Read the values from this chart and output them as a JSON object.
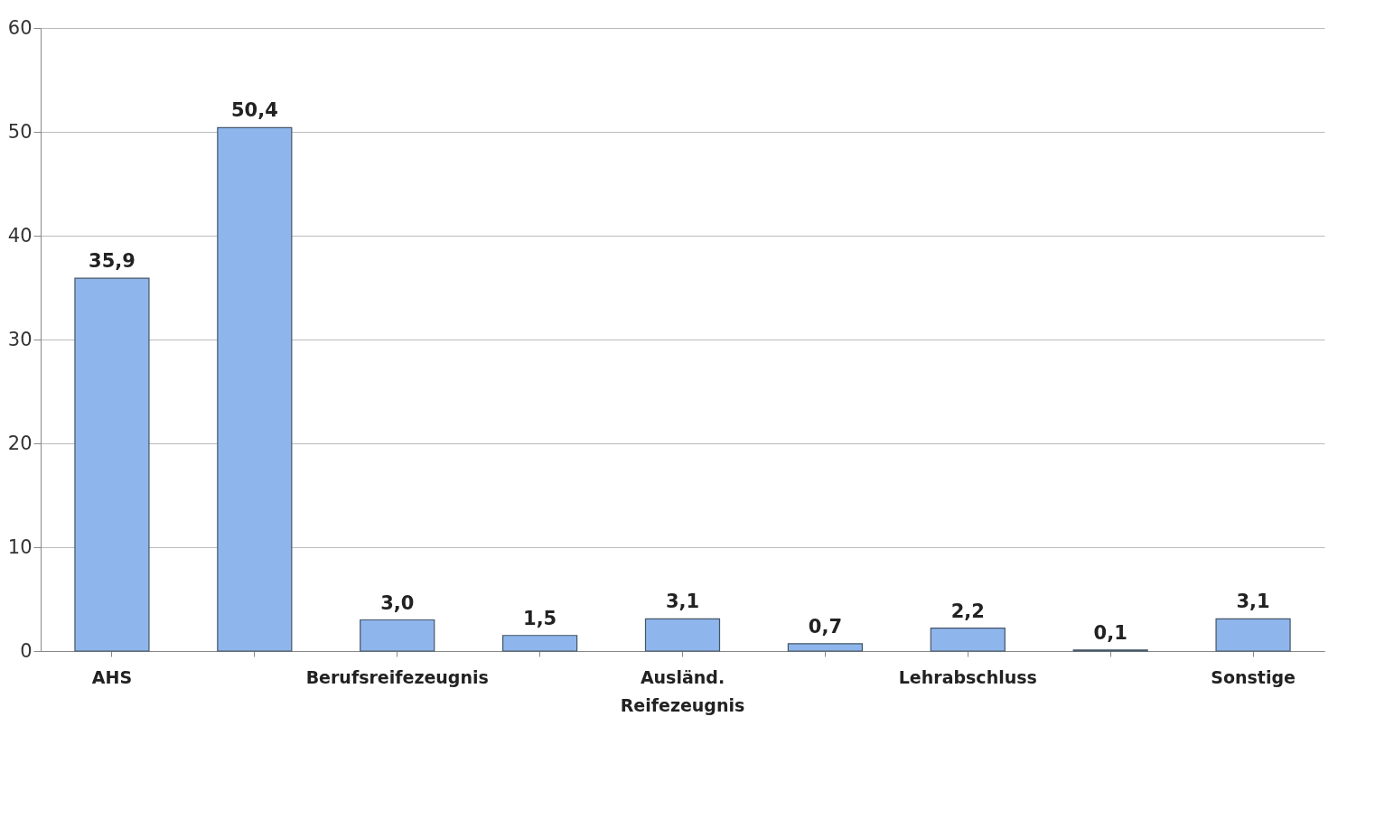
{
  "chart_data": {
    "type": "bar",
    "categories": [
      "AHS",
      null,
      "Berufsreifezeugnis",
      null,
      "Ausländ. Reifezeugnis",
      null,
      "Lehrabschluss",
      null,
      "Sonstige"
    ],
    "values": [
      35.9,
      50.4,
      3.0,
      1.5,
      3.1,
      0.7,
      2.2,
      0.1,
      3.1
    ],
    "value_labels": [
      "35,9",
      "50,4",
      "3,0",
      "1,5",
      "3,1",
      "0,7",
      "2,2",
      "0,1",
      "3,1"
    ],
    "color": "#8fb6ec",
    "ylim": [
      0,
      60
    ],
    "yticks": [
      0,
      10,
      20,
      30,
      40,
      50,
      60
    ],
    "grid": "y"
  }
}
